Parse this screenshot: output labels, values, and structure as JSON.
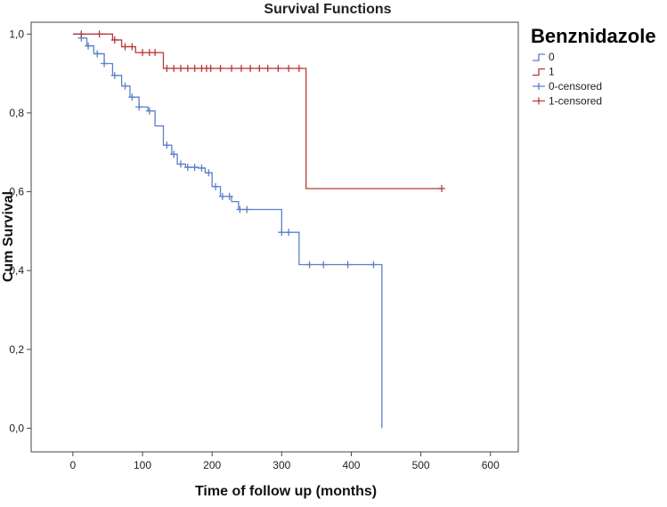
{
  "chart_data": {
    "type": "line",
    "title": "Survival Functions",
    "xlabel": "Time of follow up (months)",
    "ylabel": "Cum Survival",
    "xlim": [
      -60,
      640
    ],
    "ylim": [
      -0.06,
      1.03
    ],
    "x_ticks": [
      0,
      100,
      200,
      300,
      400,
      500,
      600
    ],
    "x_tick_labels": [
      "0",
      "100",
      "200",
      "300",
      "400",
      "500",
      "600"
    ],
    "y_ticks": [
      0.0,
      0.2,
      0.4,
      0.6,
      0.8,
      1.0
    ],
    "y_tick_labels": [
      "0,0",
      "0,2",
      "0,4",
      "0,6",
      "0,8",
      "1,0"
    ],
    "grid": false,
    "legend": {
      "title": "Benznidazole",
      "position": "top-right",
      "entries": [
        "0",
        "1",
        "0-censored",
        "1-censored"
      ]
    },
    "series": [
      {
        "name": "0",
        "color": "#5b80c8",
        "steps": [
          [
            0,
            1.0
          ],
          [
            12,
            0.99
          ],
          [
            20,
            0.97
          ],
          [
            30,
            0.95
          ],
          [
            45,
            0.925
          ],
          [
            57,
            0.895
          ],
          [
            70,
            0.868
          ],
          [
            82,
            0.84
          ],
          [
            95,
            0.815
          ],
          [
            108,
            0.805
          ],
          [
            118,
            0.767
          ],
          [
            130,
            0.718
          ],
          [
            142,
            0.695
          ],
          [
            150,
            0.67
          ],
          [
            162,
            0.662
          ],
          [
            180,
            0.66
          ],
          [
            190,
            0.648
          ],
          [
            200,
            0.613
          ],
          [
            212,
            0.588
          ],
          [
            228,
            0.575
          ],
          [
            238,
            0.555
          ],
          [
            300,
            0.497
          ],
          [
            325,
            0.415
          ],
          [
            444,
            0.415
          ],
          [
            444,
            0.0
          ]
        ],
        "censored": [
          [
            12,
            0.99
          ],
          [
            22,
            0.97
          ],
          [
            35,
            0.95
          ],
          [
            45,
            0.925
          ],
          [
            60,
            0.895
          ],
          [
            75,
            0.868
          ],
          [
            85,
            0.84
          ],
          [
            95,
            0.815
          ],
          [
            110,
            0.805
          ],
          [
            135,
            0.718
          ],
          [
            145,
            0.695
          ],
          [
            155,
            0.67
          ],
          [
            165,
            0.662
          ],
          [
            175,
            0.662
          ],
          [
            185,
            0.66
          ],
          [
            195,
            0.648
          ],
          [
            205,
            0.613
          ],
          [
            215,
            0.588
          ],
          [
            225,
            0.588
          ],
          [
            240,
            0.555
          ],
          [
            250,
            0.555
          ],
          [
            300,
            0.497
          ],
          [
            310,
            0.497
          ],
          [
            340,
            0.415
          ],
          [
            360,
            0.415
          ],
          [
            395,
            0.415
          ],
          [
            432,
            0.415
          ]
        ]
      },
      {
        "name": "1",
        "color": "#b83a3a",
        "steps": [
          [
            0,
            1.0
          ],
          [
            57,
            0.985
          ],
          [
            70,
            0.968
          ],
          [
            90,
            0.953
          ],
          [
            130,
            0.913
          ],
          [
            335,
            0.913
          ],
          [
            335,
            0.608
          ],
          [
            530,
            0.608
          ]
        ],
        "censored": [
          [
            12,
            1.0
          ],
          [
            38,
            1.0
          ],
          [
            60,
            0.985
          ],
          [
            75,
            0.968
          ],
          [
            85,
            0.968
          ],
          [
            100,
            0.953
          ],
          [
            110,
            0.953
          ],
          [
            118,
            0.953
          ],
          [
            135,
            0.913
          ],
          [
            145,
            0.913
          ],
          [
            155,
            0.913
          ],
          [
            165,
            0.913
          ],
          [
            175,
            0.913
          ],
          [
            185,
            0.913
          ],
          [
            192,
            0.913
          ],
          [
            198,
            0.913
          ],
          [
            212,
            0.913
          ],
          [
            228,
            0.913
          ],
          [
            242,
            0.913
          ],
          [
            255,
            0.913
          ],
          [
            268,
            0.913
          ],
          [
            280,
            0.913
          ],
          [
            295,
            0.913
          ],
          [
            310,
            0.913
          ],
          [
            325,
            0.913
          ],
          [
            530,
            0.608
          ]
        ]
      }
    ]
  }
}
